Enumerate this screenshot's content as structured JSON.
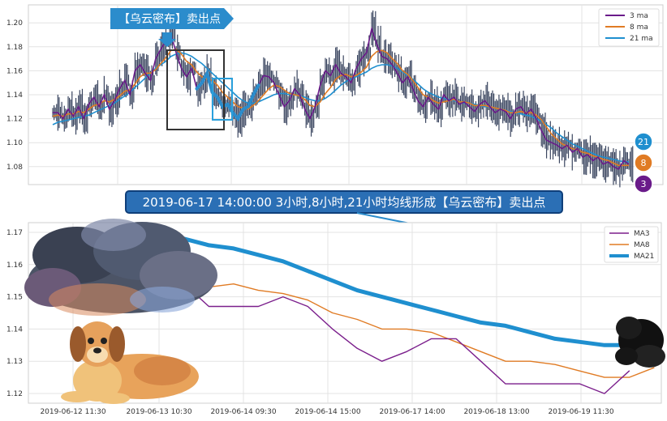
{
  "chart_data": [
    {
      "type": "line",
      "title": "",
      "ylim": [
        1.065,
        1.215
      ],
      "y_ticks": [
        "1.08",
        "1.10",
        "1.12",
        "1.14",
        "1.16",
        "1.18",
        "1.20"
      ],
      "grid": true,
      "legend_position": "top-right",
      "annotation": "【乌云密布】卖出点",
      "series": [
        {
          "name": "3 ma",
          "color": "#6a1b8a",
          "values": [
            1.125,
            1.125,
            1.12,
            1.128,
            1.122,
            1.13,
            1.12,
            1.132,
            1.138,
            1.13,
            1.14,
            1.128,
            1.135,
            1.145,
            1.152,
            1.14,
            1.16,
            1.165,
            1.158,
            1.152,
            1.17,
            1.178,
            1.185,
            1.19,
            1.175,
            1.162,
            1.155,
            1.162,
            1.145,
            1.15,
            1.158,
            1.142,
            1.138,
            1.13,
            1.132,
            1.125,
            1.12,
            1.128,
            1.13,
            1.14,
            1.148,
            1.156,
            1.155,
            1.15,
            1.14,
            1.13,
            1.135,
            1.145,
            1.14,
            1.128,
            1.12,
            1.13,
            1.148,
            1.16,
            1.156,
            1.165,
            1.158,
            1.155,
            1.15,
            1.162,
            1.17,
            1.175,
            1.195,
            1.182,
            1.172,
            1.17,
            1.165,
            1.158,
            1.15,
            1.155,
            1.145,
            1.135,
            1.13,
            1.138,
            1.132,
            1.128,
            1.14,
            1.135,
            1.138,
            1.132,
            1.134,
            1.13,
            1.126,
            1.132,
            1.135,
            1.13,
            1.125,
            1.128,
            1.126,
            1.12,
            1.128,
            1.13,
            1.124,
            1.128,
            1.12,
            1.11,
            1.102,
            1.1,
            1.098,
            1.095,
            1.098,
            1.092,
            1.095,
            1.088,
            1.09,
            1.085,
            1.088,
            1.082,
            1.084,
            1.08,
            1.078,
            1.085,
            1.082
          ]
        },
        {
          "name": "8 ma",
          "color": "#e07b24",
          "values": [
            1.122,
            1.123,
            1.122,
            1.124,
            1.124,
            1.126,
            1.125,
            1.128,
            1.131,
            1.132,
            1.135,
            1.134,
            1.136,
            1.139,
            1.143,
            1.144,
            1.149,
            1.155,
            1.158,
            1.158,
            1.161,
            1.166,
            1.171,
            1.177,
            1.178,
            1.174,
            1.168,
            1.165,
            1.159,
            1.155,
            1.153,
            1.152,
            1.148,
            1.142,
            1.138,
            1.134,
            1.13,
            1.129,
            1.128,
            1.131,
            1.135,
            1.14,
            1.145,
            1.148,
            1.147,
            1.144,
            1.141,
            1.14,
            1.139,
            1.136,
            1.131,
            1.13,
            1.134,
            1.141,
            1.146,
            1.153,
            1.156,
            1.157,
            1.155,
            1.156,
            1.159,
            1.163,
            1.172,
            1.176,
            1.177,
            1.175,
            1.17,
            1.166,
            1.16,
            1.157,
            1.152,
            1.146,
            1.14,
            1.138,
            1.135,
            1.133,
            1.134,
            1.135,
            1.136,
            1.134,
            1.134,
            1.133,
            1.131,
            1.131,
            1.131,
            1.13,
            1.129,
            1.128,
            1.127,
            1.125,
            1.125,
            1.126,
            1.125,
            1.125,
            1.123,
            1.119,
            1.113,
            1.107,
            1.103,
            1.099,
            1.097,
            1.095,
            1.094,
            1.092,
            1.091,
            1.089,
            1.088,
            1.086,
            1.085,
            1.083,
            1.081,
            1.081,
            1.081
          ]
        },
        {
          "name": "21 ma",
          "color": "#1f8fcf",
          "values": [
            1.115,
            1.117,
            1.118,
            1.119,
            1.12,
            1.121,
            1.122,
            1.123,
            1.125,
            1.127,
            1.129,
            1.131,
            1.133,
            1.136,
            1.139,
            1.142,
            1.146,
            1.15,
            1.154,
            1.158,
            1.162,
            1.165,
            1.168,
            1.172,
            1.174,
            1.175,
            1.174,
            1.172,
            1.169,
            1.166,
            1.162,
            1.158,
            1.154,
            1.15,
            1.146,
            1.142,
            1.138,
            1.135,
            1.133,
            1.133,
            1.134,
            1.136,
            1.138,
            1.14,
            1.141,
            1.141,
            1.14,
            1.14,
            1.139,
            1.138,
            1.136,
            1.135,
            1.135,
            1.137,
            1.14,
            1.144,
            1.148,
            1.151,
            1.153,
            1.155,
            1.157,
            1.159,
            1.162,
            1.164,
            1.165,
            1.165,
            1.164,
            1.162,
            1.159,
            1.156,
            1.153,
            1.149,
            1.145,
            1.142,
            1.14,
            1.138,
            1.137,
            1.136,
            1.135,
            1.134,
            1.133,
            1.133,
            1.132,
            1.131,
            1.13,
            1.13,
            1.129,
            1.128,
            1.127,
            1.126,
            1.125,
            1.124,
            1.123,
            1.122,
            1.12,
            1.118,
            1.115,
            1.112,
            1.108,
            1.105,
            1.102,
            1.099,
            1.097,
            1.095,
            1.093,
            1.091,
            1.089,
            1.088,
            1.087,
            1.086,
            1.085,
            1.084,
            1.084
          ]
        }
      ],
      "end_labels": [
        "21",
        "8",
        "3"
      ]
    },
    {
      "type": "line",
      "caption": "2019-06-17 14:00:00 3小时,8小时,21小时均线形成【乌云密布】卖出点",
      "categories": [
        "2019-06-12 11:30",
        "2019-06-13 10:30",
        "2019-06-14 09:30",
        "2019-06-14 15:00",
        "2019-06-17 14:00",
        "2019-06-18 13:00",
        "2019-06-19 11:30"
      ],
      "xlim": [
        -2.3,
        23.3
      ],
      "ylim": [
        1.117,
        1.173
      ],
      "y_ticks": [
        "1.12",
        "1.13",
        "1.14",
        "1.15",
        "1.16",
        "1.17"
      ],
      "grid": true,
      "legend_position": "top-right",
      "series": [
        {
          "name": "MA3",
          "color": "#7b1f8c",
          "x": [
            2.0,
            3.0,
            4.0,
            5.0,
            6.0,
            7.0,
            8.0,
            9.0,
            10.0,
            11.0,
            12.0,
            13.0,
            14.0,
            15.0,
            16.0,
            17.0,
            18.0,
            19.0,
            20.0,
            21.0,
            22.0
          ],
          "values": [
            1.16,
            1.156,
            1.154,
            1.147,
            1.147,
            1.147,
            1.15,
            1.147,
            1.14,
            1.134,
            1.13,
            1.133,
            1.137,
            1.137,
            1.13,
            1.123,
            1.123,
            1.123,
            1.123,
            1.12,
            1.127
          ]
        },
        {
          "name": "MA8",
          "color": "#e07b24",
          "x": [
            2.0,
            3.0,
            4.0,
            5.0,
            6.0,
            7.0,
            8.0,
            9.0,
            10.0,
            11.0,
            12.0,
            13.0,
            14.0,
            15.0,
            16.0,
            17.0,
            18.0,
            19.0,
            20.0,
            21.0,
            22.0,
            23.0
          ],
          "values": [
            1.158,
            1.155,
            1.154,
            1.153,
            1.154,
            1.152,
            1.151,
            1.149,
            1.145,
            1.143,
            1.14,
            1.14,
            1.139,
            1.136,
            1.133,
            1.13,
            1.13,
            1.129,
            1.127,
            1.125,
            1.125,
            1.128
          ]
        },
        {
          "name": "MA21",
          "color": "#1f8fcf",
          "x": [
            2.0,
            3.0,
            4.0,
            5.0,
            6.0,
            7.0,
            8.0,
            9.0,
            10.0,
            11.0,
            12.0,
            13.0,
            14.0,
            15.0,
            16.0,
            17.0,
            18.0,
            19.0,
            20.0,
            21.0,
            22.0,
            23.0
          ],
          "values": [
            1.17,
            1.169,
            1.168,
            1.166,
            1.165,
            1.163,
            1.161,
            1.158,
            1.155,
            1.152,
            1.15,
            1.148,
            1.146,
            1.144,
            1.142,
            1.141,
            1.139,
            1.137,
            1.136,
            1.135,
            1.135,
            1.135
          ]
        }
      ]
    }
  ]
}
